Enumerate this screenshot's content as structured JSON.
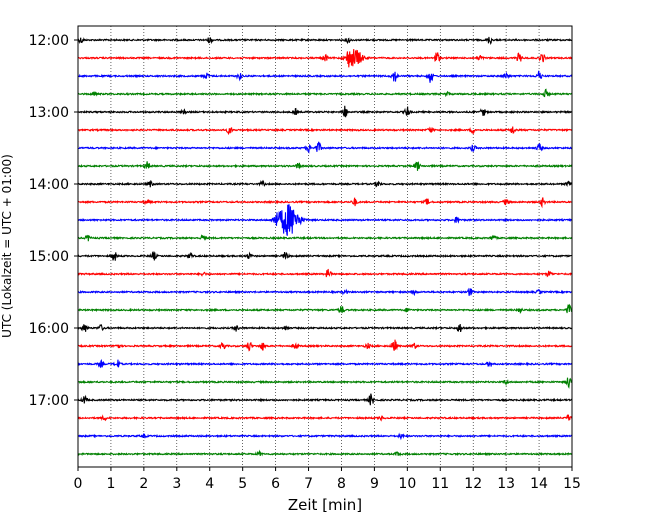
{
  "chart_data": {
    "type": "line",
    "title": "",
    "xlabel": "Zeit  [min]",
    "ylabel": "UTC (Lokalzeit = UTC + 01:00)",
    "xlim": [
      0,
      15
    ],
    "x_ticks": [
      0,
      1,
      2,
      3,
      4,
      5,
      6,
      7,
      8,
      9,
      10,
      11,
      12,
      13,
      14,
      15
    ],
    "x_tick_labels": [
      "0",
      "1",
      "2",
      "3",
      "4",
      "5",
      "6",
      "7",
      "8",
      "9",
      "10",
      "11",
      "12",
      "13",
      "14",
      "15"
    ],
    "y_ticks": [
      "12:00",
      "13:00",
      "14:00",
      "15:00",
      "16:00",
      "17:00"
    ],
    "grid": "vertical dotted",
    "trace_duration_min": 15,
    "trace_colors": [
      "#000000",
      "#ff0000",
      "#0000ff",
      "#008000"
    ],
    "traces": [
      {
        "start": "12:00",
        "color": "#000000",
        "events": [
          [
            0.1,
            3
          ],
          [
            4.0,
            3
          ],
          [
            8.2,
            3
          ],
          [
            12.5,
            4
          ]
        ]
      },
      {
        "start": "12:15",
        "color": "#ff0000",
        "events": [
          [
            7.5,
            4
          ],
          [
            8.2,
            5
          ],
          [
            8.4,
            9
          ],
          [
            10.9,
            7
          ],
          [
            12.2,
            3
          ],
          [
            13.4,
            5
          ],
          [
            14.1,
            5
          ]
        ]
      },
      {
        "start": "12:30",
        "color": "#0000ff",
        "events": [
          [
            3.9,
            3
          ],
          [
            4.9,
            3
          ],
          [
            9.6,
            7
          ],
          [
            10.7,
            7
          ],
          [
            13.0,
            3
          ],
          [
            14.0,
            5
          ]
        ]
      },
      {
        "start": "12:45",
        "color": "#008000",
        "events": [
          [
            0.5,
            2
          ],
          [
            11.2,
            2
          ],
          [
            14.2,
            4
          ]
        ]
      },
      {
        "start": "13:00",
        "color": "#000000",
        "events": [
          [
            3.2,
            2
          ],
          [
            6.6,
            3
          ],
          [
            8.1,
            6
          ],
          [
            10.0,
            5
          ],
          [
            12.3,
            4
          ]
        ]
      },
      {
        "start": "13:15",
        "color": "#ff0000",
        "events": [
          [
            4.6,
            4
          ],
          [
            10.7,
            3
          ],
          [
            12.0,
            3
          ],
          [
            13.2,
            4
          ]
        ]
      },
      {
        "start": "13:30",
        "color": "#0000ff",
        "events": [
          [
            7.0,
            4
          ],
          [
            7.3,
            6
          ],
          [
            12.0,
            3
          ],
          [
            14.0,
            4
          ]
        ]
      },
      {
        "start": "13:45",
        "color": "#008000",
        "events": [
          [
            2.1,
            4
          ],
          [
            6.7,
            3
          ],
          [
            10.3,
            5
          ]
        ]
      },
      {
        "start": "14:00",
        "color": "#000000",
        "events": [
          [
            2.2,
            3
          ],
          [
            5.6,
            2
          ],
          [
            9.1,
            3
          ],
          [
            14.9,
            3
          ]
        ]
      },
      {
        "start": "14:15",
        "color": "#ff0000",
        "events": [
          [
            2.1,
            2
          ],
          [
            8.4,
            4
          ],
          [
            10.6,
            3
          ],
          [
            13.0,
            3
          ],
          [
            14.1,
            4
          ]
        ]
      },
      {
        "start": "14:30",
        "color": "#0000ff",
        "events": [
          [
            6.0,
            6
          ],
          [
            6.3,
            13
          ],
          [
            6.55,
            9
          ],
          [
            11.5,
            3
          ]
        ]
      },
      {
        "start": "14:45",
        "color": "#008000",
        "events": [
          [
            0.3,
            3
          ],
          [
            3.8,
            3
          ],
          [
            12.6,
            3
          ]
        ]
      },
      {
        "start": "15:00",
        "color": "#000000",
        "events": [
          [
            1.1,
            5
          ],
          [
            2.3,
            4
          ],
          [
            3.4,
            3
          ],
          [
            5.2,
            3
          ],
          [
            6.3,
            4
          ]
        ]
      },
      {
        "start": "15:15",
        "color": "#ff0000",
        "events": [
          [
            3.8,
            2
          ],
          [
            7.6,
            5
          ],
          [
            14.3,
            3
          ]
        ]
      },
      {
        "start": "15:30",
        "color": "#0000ff",
        "events": [
          [
            8.1,
            2
          ],
          [
            10.2,
            2
          ],
          [
            11.9,
            4
          ],
          [
            14.0,
            2
          ]
        ]
      },
      {
        "start": "15:45",
        "color": "#008000",
        "events": [
          [
            8.0,
            4
          ],
          [
            10.0,
            2
          ],
          [
            13.4,
            3
          ],
          [
            14.9,
            5
          ]
        ]
      },
      {
        "start": "16:00",
        "color": "#000000",
        "events": [
          [
            0.2,
            4
          ],
          [
            0.7,
            3
          ],
          [
            4.8,
            3
          ],
          [
            6.3,
            2
          ],
          [
            11.6,
            5
          ]
        ]
      },
      {
        "start": "16:15",
        "color": "#ff0000",
        "events": [
          [
            1.2,
            3
          ],
          [
            4.4,
            4
          ],
          [
            5.2,
            5
          ],
          [
            5.6,
            4
          ],
          [
            6.6,
            3
          ],
          [
            8.8,
            3
          ],
          [
            9.6,
            7
          ],
          [
            10.2,
            3
          ]
        ]
      },
      {
        "start": "16:30",
        "color": "#0000ff",
        "events": [
          [
            0.7,
            3
          ],
          [
            1.2,
            4
          ],
          [
            12.5,
            3
          ]
        ]
      },
      {
        "start": "16:45",
        "color": "#008000",
        "events": [
          [
            13.0,
            2
          ],
          [
            14.9,
            6
          ]
        ]
      },
      {
        "start": "17:00",
        "color": "#000000",
        "events": [
          [
            0.2,
            4
          ],
          [
            8.9,
            6
          ]
        ]
      },
      {
        "start": "17:15",
        "color": "#ff0000",
        "events": [
          [
            0.8,
            2
          ],
          [
            9.2,
            2
          ],
          [
            14.9,
            3
          ]
        ]
      },
      {
        "start": "17:30",
        "color": "#0000ff",
        "events": [
          [
            2.0,
            2
          ],
          [
            9.8,
            2
          ]
        ]
      },
      {
        "start": "17:45",
        "color": "#008000",
        "events": [
          [
            5.5,
            2
          ],
          [
            9.7,
            2
          ]
        ]
      }
    ]
  }
}
